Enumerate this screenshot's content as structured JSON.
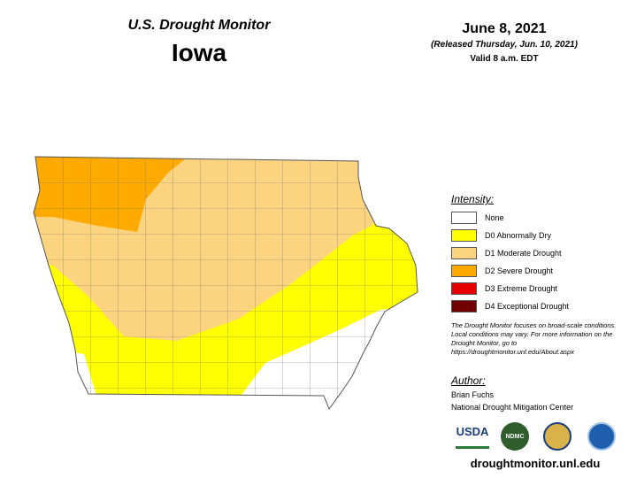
{
  "header": {
    "title": "U.S. Drought Monitor",
    "state": "Iowa",
    "date": "June 8, 2021",
    "released": "(Released Thursday, Jun. 10, 2021)",
    "valid": "Valid 8 a.m. EDT"
  },
  "legend": {
    "title": "Intensity:",
    "items": [
      {
        "label": "None",
        "color": "#ffffff"
      },
      {
        "label": "D0 Abnormally Dry",
        "color": "#ffff00"
      },
      {
        "label": "D1 Moderate Drought",
        "color": "#fcd37f"
      },
      {
        "label": "D2 Severe Drought",
        "color": "#ffaa00"
      },
      {
        "label": "D3 Extreme Drought",
        "color": "#e60000"
      },
      {
        "label": "D4 Exceptional Drought",
        "color": "#730000"
      }
    ]
  },
  "note": "The Drought Monitor focuses on broad-scale conditions. Local conditions may vary. For more information on the Drought Monitor, go to https://droughtmonitor.unl.edu/About.aspx",
  "author": {
    "heading": "Author:",
    "name": "Brian Fuchs",
    "org": "National Drought Mitigation Center"
  },
  "logos": [
    "USDA",
    "NDMC"
  ],
  "url": "droughtmonitor.unl.edu"
}
